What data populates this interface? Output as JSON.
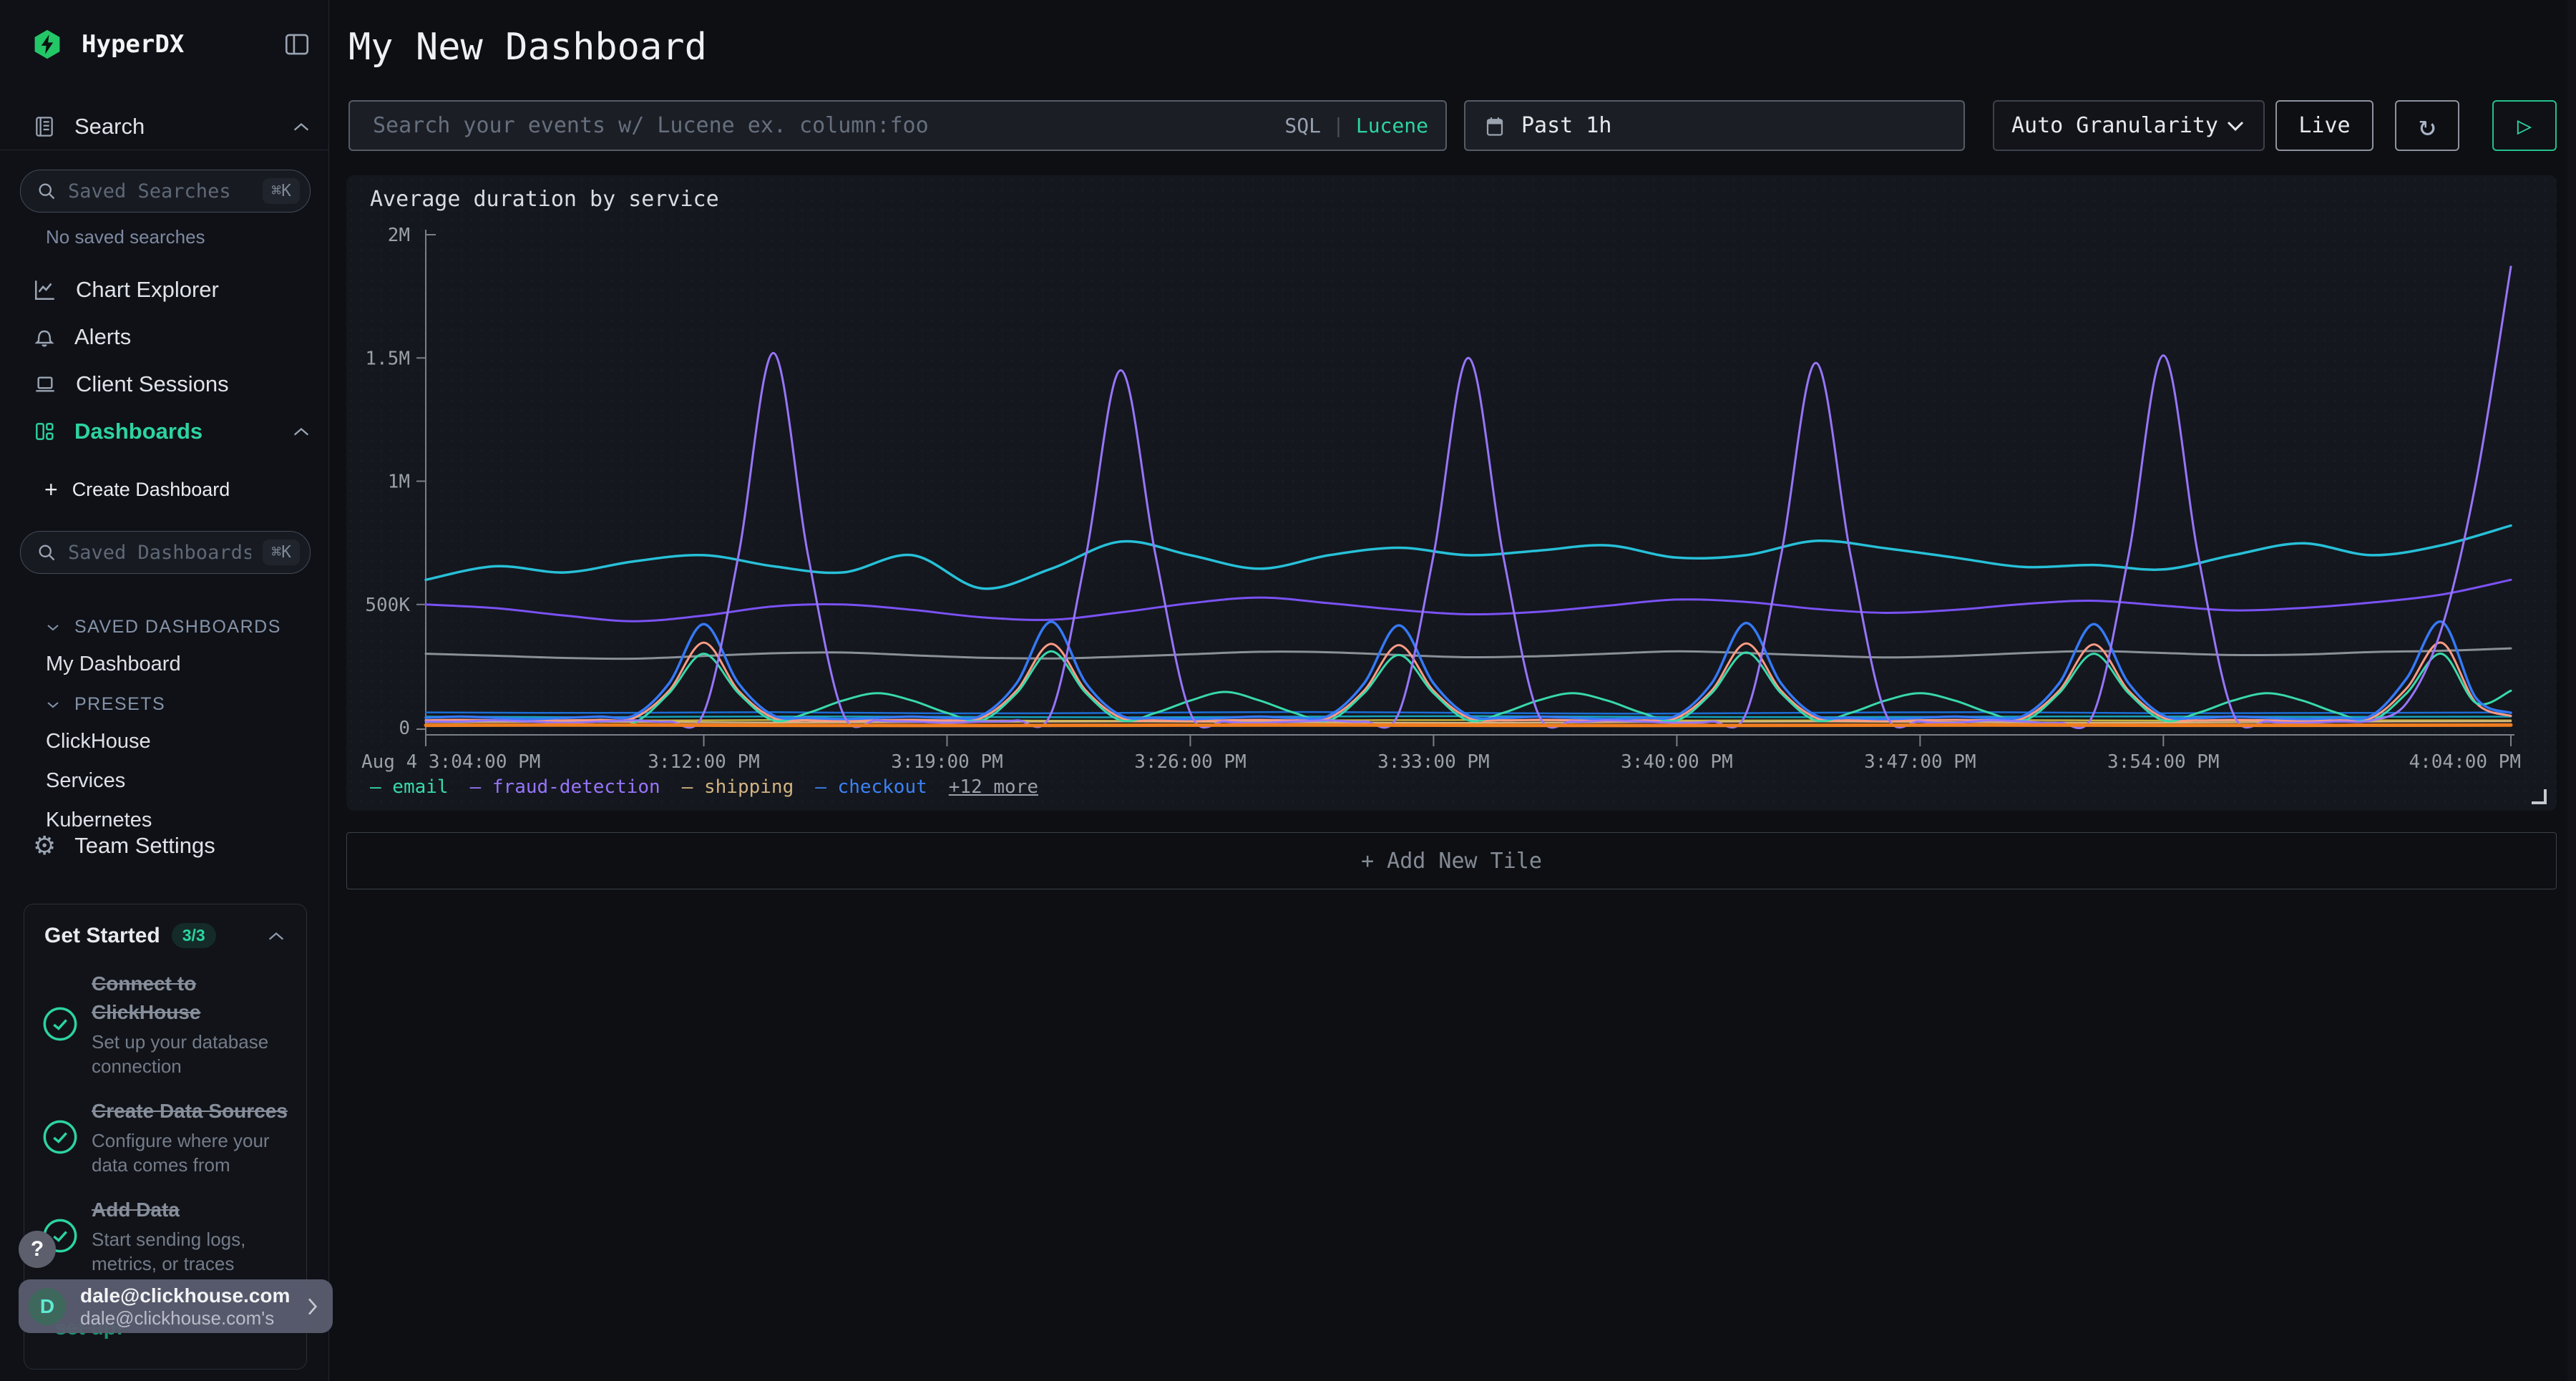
{
  "app": {
    "brand": "HyperDX"
  },
  "sidebar": {
    "search_label": "Search",
    "saved_searches": {
      "placeholder": "Saved Searches",
      "shortcut": "⌘K",
      "empty": "No saved searches"
    },
    "nav": [
      {
        "label": "Chart Explorer",
        "icon": "line-chart-icon"
      },
      {
        "label": "Alerts",
        "icon": "bell-icon"
      },
      {
        "label": "Client Sessions",
        "icon": "laptop-icon"
      },
      {
        "label": "Dashboards",
        "icon": "dashboard-grid-icon",
        "active": true,
        "chevron": "up"
      }
    ],
    "create_dashboard_label": "Create Dashboard",
    "saved_dashboards": {
      "placeholder": "Saved Dashboards",
      "shortcut": "⌘K"
    },
    "sections": [
      {
        "title": "SAVED DASHBOARDS",
        "items": [
          "My Dashboard"
        ]
      },
      {
        "title": "PRESETS",
        "items": [
          "ClickHouse",
          "Services",
          "Kubernetes"
        ]
      }
    ],
    "team_settings_label": "Team Settings",
    "get_started": {
      "title": "Get Started",
      "badge": "3/3",
      "items": [
        {
          "title": "Connect to ClickHouse",
          "desc": "Set up your database connection"
        },
        {
          "title": "Create Data Sources",
          "desc": "Configure where your data comes from"
        },
        {
          "title": "Add Data",
          "desc": "Start sending logs, metrics, or traces"
        }
      ],
      "footer_fragment": "set up!"
    },
    "help_label": "?",
    "user": {
      "initial": "D",
      "name": "dale@clickhouse.com",
      "subtitle": "dale@clickhouse.com's"
    }
  },
  "header": {
    "title": "My New Dashboard",
    "search": {
      "placeholder": "Search your events w/ Lucene ex. column:foo",
      "sql": "SQL",
      "divider": "|",
      "lucene": "Lucene"
    },
    "time_range": "Past 1h",
    "granularity": "Auto Granularity",
    "live_label": "Live",
    "refresh_glyph": "↻",
    "play_glyph": "▷"
  },
  "add_tile_label": "+ Add New Tile",
  "colors": {
    "accent_green": "#2dd4a0",
    "sql_dim": "#98a1b0",
    "lucene_green": "#2dd4a0",
    "axis": "#7a7f88"
  },
  "chart_data": {
    "type": "line",
    "title": "Average duration by service",
    "values_unit": "thousands",
    "x_axis": {
      "range_minutes": [
        0,
        60
      ],
      "labels": [
        "Aug 4 3:04:00 PM",
        "3:12:00 PM",
        "3:19:00 PM",
        "3:26:00 PM",
        "3:33:00 PM",
        "3:40:00 PM",
        "3:47:00 PM",
        "3:54:00 PM",
        "4:04:00 PM"
      ],
      "label_minutes": [
        0,
        8,
        15,
        22,
        29,
        36,
        43,
        50,
        60
      ]
    },
    "y_axis": {
      "ticks": [
        "0",
        "500K",
        "1M",
        "1.5M",
        "2M"
      ],
      "tick_values_k": [
        0,
        500,
        1000,
        1500,
        2000
      ],
      "max_k": 2000
    },
    "legend": [
      {
        "label": "email",
        "color": "#38d9a9"
      },
      {
        "label": "fraud-detection",
        "color": "#9775fa"
      },
      {
        "label": "shipping",
        "color": "#d3b480"
      },
      {
        "label": "checkout",
        "color": "#3b82f6"
      },
      {
        "label": "+12 more"
      }
    ],
    "series": [
      {
        "name": "unlabeled-gray",
        "color": "#8a9097",
        "width": 3,
        "values": [
          300,
          292,
          283,
          280,
          291,
          302,
          305,
          294,
          284,
          281,
          288,
          298,
          308,
          306,
          295,
          286,
          290,
          300,
          310,
          303,
          293,
          285,
          291,
          303,
          311,
          303,
          295,
          297,
          307,
          312,
          322
        ]
      },
      {
        "name": "unlabeled-purple-wavy",
        "color": "#7a52f4",
        "width": 3,
        "values": [
          500,
          485,
          455,
          432,
          455,
          492,
          500,
          478,
          448,
          438,
          468,
          505,
          528,
          505,
          478,
          460,
          470,
          495,
          520,
          510,
          482,
          466,
          478,
          502,
          515,
          495,
          476,
          486,
          508,
          540,
          600
        ]
      },
      {
        "name": "unlabeled-cyan",
        "color": "#27c0d8",
        "width": 3.5,
        "values": [
          600,
          655,
          630,
          675,
          700,
          655,
          630,
          700,
          565,
          645,
          755,
          700,
          645,
          700,
          730,
          700,
          718,
          740,
          690,
          700,
          758,
          728,
          690,
          652,
          660,
          642,
          700,
          748,
          700,
          740,
          820
        ]
      },
      {
        "name": "unlabeled-flat-blue",
        "color": "#1b6ed6",
        "width": 2.5,
        "values": [
          62,
          60,
          63,
          58,
          60,
          64,
          60,
          57,
          61,
          63,
          59,
          60,
          62
        ]
      },
      {
        "name": "unlabeled-flat-cyan",
        "color": "#17a2b8",
        "width": 2.5,
        "values": [
          45,
          43,
          46,
          44,
          42,
          45,
          47,
          44,
          43,
          45,
          46,
          44,
          45
        ]
      },
      {
        "name": "unlabeled-flat-yellow",
        "color": "#c9b33c",
        "width": 2.5,
        "values": [
          30,
          29,
          31,
          30,
          28,
          30,
          31,
          29,
          30,
          31,
          29,
          30,
          30
        ]
      },
      {
        "name": "shipping",
        "color": "#d3b480",
        "width": 2.5,
        "values": [
          22,
          24,
          21,
          23,
          25,
          22,
          20,
          23,
          25,
          22,
          21,
          24,
          26
        ]
      },
      {
        "name": "unlabeled-salmon",
        "color": "#ff9b85",
        "width": 3,
        "values": [
          30,
          32,
          30,
          28,
          30,
          32,
          40,
          150,
          345,
          150,
          40,
          30,
          28,
          30,
          32,
          30,
          40,
          150,
          340,
          150,
          40,
          30,
          28,
          30,
          32,
          30,
          40,
          150,
          335,
          150,
          40,
          30,
          32,
          30,
          28,
          30,
          40,
          150,
          342,
          150,
          40,
          30,
          28,
          30,
          32,
          30,
          40,
          150,
          338,
          150,
          40,
          30,
          32,
          30,
          28,
          30,
          40,
          160,
          345,
          100,
          48
        ]
      },
      {
        "name": "email",
        "color": "#38d9a9",
        "width": 3,
        "values": [
          12,
          14,
          12,
          10,
          12,
          14,
          20,
          140,
          300,
          140,
          30,
          60,
          110,
          140,
          110,
          60,
          30,
          140,
          310,
          140,
          30,
          60,
          110,
          145,
          110,
          60,
          30,
          140,
          295,
          140,
          30,
          60,
          110,
          140,
          110,
          60,
          30,
          140,
          305,
          140,
          30,
          60,
          110,
          140,
          110,
          60,
          30,
          140,
          300,
          140,
          30,
          60,
          110,
          140,
          110,
          60,
          30,
          140,
          300,
          100,
          150
        ]
      },
      {
        "name": "checkout",
        "color": "#3579f6",
        "width": 3.5,
        "values": [
          40,
          45,
          40,
          35,
          40,
          45,
          50,
          180,
          420,
          180,
          50,
          40,
          35,
          40,
          45,
          40,
          50,
          180,
          430,
          180,
          50,
          40,
          35,
          40,
          45,
          40,
          50,
          180,
          415,
          180,
          50,
          40,
          45,
          40,
          35,
          40,
          50,
          180,
          425,
          180,
          50,
          40,
          35,
          40,
          45,
          40,
          50,
          180,
          420,
          180,
          50,
          40,
          45,
          40,
          35,
          40,
          50,
          200,
          430,
          120,
          60
        ]
      },
      {
        "name": "fraud-detection",
        "color": "#9775fa",
        "width": 3,
        "values": [
          25,
          25,
          30,
          25,
          20,
          25,
          30,
          25,
          60,
          700,
          1520,
          700,
          60,
          30,
          25,
          20,
          25,
          30,
          60,
          700,
          1450,
          700,
          60,
          25,
          20,
          25,
          30,
          25,
          60,
          700,
          1500,
          700,
          60,
          25,
          30,
          25,
          20,
          25,
          60,
          700,
          1480,
          700,
          60,
          25,
          20,
          30,
          25,
          20,
          60,
          700,
          1510,
          700,
          60,
          25,
          20,
          25,
          30,
          100,
          400,
          1000,
          1870
        ]
      },
      {
        "name": "unlabeled-orange",
        "color": "#ef7d1f",
        "width": 5,
        "values": [
          10,
          11,
          10,
          9,
          10,
          11,
          10,
          9,
          10,
          11,
          10,
          10,
          11
        ]
      }
    ]
  }
}
